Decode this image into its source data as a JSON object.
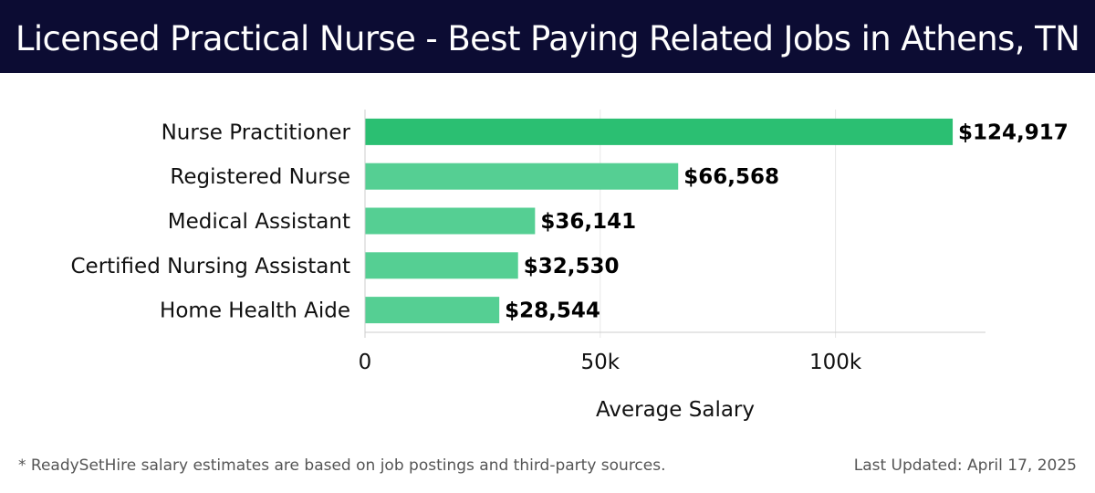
{
  "header": {
    "title": "Licensed Practical Nurse - Best Paying Related Jobs in Athens, TN"
  },
  "chart_data": {
    "type": "bar",
    "orientation": "horizontal",
    "categories": [
      "Nurse Practitioner",
      "Registered Nurse",
      "Medical Assistant",
      "Certified Nursing Assistant",
      "Home Health Aide"
    ],
    "values": [
      124917,
      66568,
      36141,
      32530,
      28544
    ],
    "value_labels": [
      "$124,917",
      "$66,568",
      "$36,141",
      "$32,530",
      "$28,544"
    ],
    "xlabel": "Average Salary",
    "ylabel": "",
    "xlim": [
      0,
      131500
    ],
    "xticks": [
      0,
      50000,
      100000
    ],
    "xtick_labels": [
      "0",
      "50k",
      "100k"
    ],
    "grid": "vertical",
    "colors": {
      "top_bar": "#2bbf72",
      "other_bars": "#55cf93",
      "grid": "#e6e6e6",
      "axis": "#cccccc"
    }
  },
  "footer": {
    "note": "* ReadySetHire salary estimates are based on job postings and third-party sources.",
    "updated": "Last Updated: April 17, 2025"
  }
}
